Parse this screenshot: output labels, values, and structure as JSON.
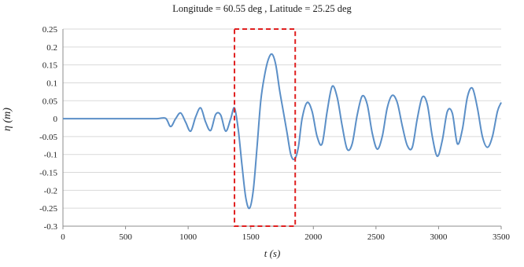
{
  "chart_data": {
    "type": "line",
    "title": "Longitude = 60.55 deg , Latitude = 25.25 deg",
    "xlabel": "t (s)",
    "ylabel": "η (m)",
    "xlim": [
      0,
      3500
    ],
    "ylim": [
      -0.3,
      0.25
    ],
    "x_ticks": [
      0,
      500,
      1000,
      1500,
      2000,
      2500,
      3000,
      3500
    ],
    "y_ticks": [
      0.25,
      0.2,
      0.15,
      0.1,
      0.05,
      0,
      -0.05,
      -0.1,
      -0.15,
      -0.2,
      -0.25,
      -0.3
    ],
    "x_tick_labels": [
      "0",
      "500",
      "1000",
      "1500",
      "2000",
      "2500",
      "3000",
      "3500"
    ],
    "y_tick_labels": [
      "0.25",
      "0.2",
      "0.15",
      "0.1",
      "0.05",
      "0",
      "-0.05",
      "-0.1",
      "-0.15",
      "-0.2",
      "-0.25",
      "-0.3"
    ],
    "grid": "horizontal",
    "line_color": "#5b8fc7",
    "highlight_box": {
      "x_range": [
        1370,
        1855
      ],
      "y_range": [
        -0.3,
        0.25
      ],
      "color": "#e02020",
      "style": "dashed"
    },
    "series": [
      {
        "x": [
          0,
          200,
          400,
          600,
          750,
          820,
          860,
          900,
          940,
          980,
          1020,
          1060,
          1100,
          1140,
          1180,
          1220,
          1260,
          1300,
          1340,
          1370,
          1400,
          1430,
          1460,
          1490,
          1520,
          1550,
          1580,
          1610,
          1640,
          1670,
          1700,
          1730,
          1760,
          1790,
          1820,
          1850,
          1880,
          1910,
          1950,
          1990,
          2030,
          2070,
          2110,
          2150,
          2190,
          2230,
          2270,
          2310,
          2350,
          2390,
          2430,
          2470,
          2510,
          2550,
          2590,
          2630,
          2670,
          2710,
          2750,
          2790,
          2830,
          2870,
          2910,
          2950,
          2990,
          3030,
          3070,
          3110,
          3150,
          3190,
          3230,
          3270,
          3310,
          3350,
          3390,
          3430,
          3470,
          3500
        ],
        "y": [
          0,
          0,
          0,
          0,
          0,
          0.001,
          -0.022,
          0.0,
          0.016,
          -0.01,
          -0.035,
          0.005,
          0.03,
          -0.01,
          -0.033,
          0.012,
          0.01,
          -0.035,
          0.0,
          0.03,
          -0.03,
          -0.13,
          -0.22,
          -0.25,
          -0.2,
          -0.08,
          0.05,
          0.12,
          0.165,
          0.18,
          0.15,
          0.08,
          0.02,
          -0.04,
          -0.1,
          -0.113,
          -0.08,
          0.0,
          0.045,
          0.02,
          -0.05,
          -0.07,
          0.02,
          0.09,
          0.06,
          -0.02,
          -0.085,
          -0.07,
          0.01,
          0.063,
          0.04,
          -0.04,
          -0.085,
          -0.05,
          0.03,
          0.065,
          0.045,
          -0.02,
          -0.075,
          -0.08,
          0.0,
          0.06,
          0.04,
          -0.05,
          -0.105,
          -0.06,
          0.02,
          0.015,
          -0.07,
          -0.03,
          0.06,
          0.085,
          0.03,
          -0.05,
          -0.08,
          -0.05,
          0.02,
          0.045
        ]
      }
    ]
  }
}
